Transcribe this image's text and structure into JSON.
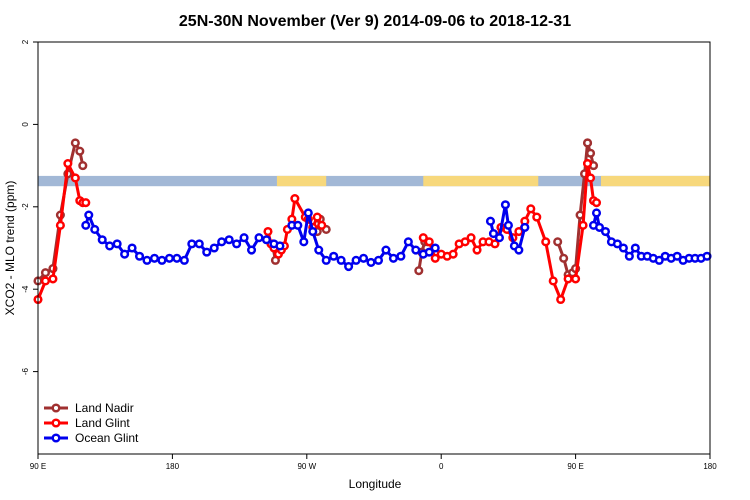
{
  "chart_data": {
    "type": "line",
    "title": "25N-30N November (Ver 9)   2014-09-06 to 2018-12-31",
    "xlabel": "Longitude",
    "ylabel": "XCO2 - MLO trend (ppm)",
    "xlim": [
      0,
      450
    ],
    "ylim": [
      -8,
      2
    ],
    "x_ticks": [
      {
        "value": 0,
        "label": "90 E"
      },
      {
        "value": 90,
        "label": "180"
      },
      {
        "value": 180,
        "label": "90 W"
      },
      {
        "value": 270,
        "label": "0"
      },
      {
        "value": 360,
        "label": "90 E"
      },
      {
        "value": 450,
        "label": "180"
      }
    ],
    "y_ticks": [
      {
        "value": 2,
        "label": "2"
      },
      {
        "value": 0,
        "label": "0"
      },
      {
        "value": -2,
        "label": "-2"
      },
      {
        "value": -4,
        "label": "-4"
      },
      {
        "value": -6,
        "label": "-6"
      }
    ],
    "legend_position": "bottom-left",
    "land_band": {
      "y_range": [
        -1.5,
        -1.25
      ],
      "ocean_color": "#a2b8d6",
      "land_color": "#f7d87c",
      "land_segments": [
        [
          160,
          193
        ],
        [
          258,
          335
        ],
        [
          377,
          450
        ]
      ]
    },
    "series": [
      {
        "name": "Land Nadir",
        "color": "#a03030",
        "x": [
          0,
          5,
          10,
          15,
          20,
          25,
          28,
          30
        ],
        "y": [
          -3.8,
          -3.6,
          -3.5,
          -2.2,
          -1.2,
          -0.45,
          -0.65,
          -1.0
        ],
        "segments": [
          {
            "x": [
              0,
              5,
              10,
              15,
              20,
              25,
              28,
              30
            ],
            "y": [
              -3.8,
              -3.6,
              -3.5,
              -2.2,
              -1.2,
              -0.45,
              -0.65,
              -1.0
            ]
          },
          {
            "x": [
              157,
              159,
              161,
              163
            ],
            "y": [
              -2.9,
              -3.3,
              -3.1,
              -3.0
            ]
          },
          {
            "x": [
              187,
              189,
              193
            ],
            "y": [
              -2.6,
              -2.3,
              -2.55
            ]
          },
          {
            "x": [
              255,
              257,
              259,
              261
            ],
            "y": [
              -3.55,
              -3.1,
              -2.85,
              -2.85
            ]
          },
          {
            "x": [
              348,
              352,
              355,
              358,
              360,
              363,
              366,
              368
            ],
            "y": [
              -2.85,
              -3.25,
              -3.65,
              -3.6,
              -3.5,
              -2.2,
              -1.2,
              -0.45
            ]
          },
          {
            "x": [
              368,
              370,
              372
            ],
            "y": [
              -0.45,
              -0.7,
              -1.0
            ]
          }
        ]
      },
      {
        "name": "Land Glint",
        "color": "#ff0000",
        "segments": [
          {
            "x": [
              0,
              5,
              10,
              15,
              20,
              25,
              28,
              30,
              32
            ],
            "y": [
              -4.25,
              -3.8,
              -3.75,
              -2.45,
              -0.95,
              -1.3,
              -1.85,
              -1.9,
              -1.9
            ]
          },
          {
            "x": [
              154,
              156,
              158,
              161,
              163,
              165,
              167,
              170,
              172,
              179,
              181
            ],
            "y": [
              -2.6,
              -2.9,
              -3.0,
              -3.15,
              -3.05,
              -2.95,
              -2.55,
              -2.3,
              -1.8,
              -2.25,
              -2.3
            ]
          },
          {
            "x": [
              181,
              184,
              187,
              190
            ],
            "y": [
              -2.3,
              -2.5,
              -2.25,
              -2.45
            ]
          },
          {
            "x": [
              258,
              262,
              266,
              270,
              274,
              278,
              282,
              286,
              290,
              294,
              298,
              302,
              306,
              310,
              314,
              318,
              322,
              326,
              330,
              334,
              340,
              345,
              350,
              355,
              360,
              365,
              368
            ],
            "y": [
              -2.75,
              -2.85,
              -3.25,
              -3.15,
              -3.2,
              -3.15,
              -2.9,
              -2.85,
              -2.75,
              -3.05,
              -2.85,
              -2.85,
              -2.9,
              -2.5,
              -2.55,
              -2.75,
              -2.6,
              -2.35,
              -2.05,
              -2.25,
              -2.85,
              -3.8,
              -4.25,
              -3.75,
              -3.75,
              -2.45,
              -0.95
            ]
          },
          {
            "x": [
              368,
              370,
              372,
              374
            ],
            "y": [
              -0.95,
              -1.3,
              -1.85,
              -1.9
            ]
          }
        ]
      },
      {
        "name": "Ocean Glint",
        "color": "#0000ee",
        "segments": [
          {
            "x": [
              32,
              34,
              38,
              43,
              48,
              53,
              58,
              63,
              68,
              73,
              78,
              83,
              88,
              93,
              98,
              103,
              108,
              113,
              118,
              123,
              128,
              133,
              138,
              143,
              148,
              153,
              158,
              162
            ],
            "y": [
              -2.45,
              -2.2,
              -2.55,
              -2.8,
              -2.95,
              -2.9,
              -3.15,
              -3.0,
              -3.2,
              -3.3,
              -3.25,
              -3.3,
              -3.25,
              -3.25,
              -3.3,
              -2.9,
              -2.9,
              -3.1,
              -3.0,
              -2.85,
              -2.8,
              -2.9,
              -2.75,
              -3.05,
              -2.75,
              -2.8,
              -2.9,
              -2.95
            ]
          },
          {
            "x": [
              170,
              174,
              178,
              181,
              184,
              188,
              193,
              198,
              203,
              208,
              213,
              218,
              223,
              228,
              233,
              238,
              243,
              248,
              253,
              258,
              262,
              266
            ],
            "y": [
              -2.45,
              -2.45,
              -2.85,
              -2.15,
              -2.6,
              -3.05,
              -3.3,
              -3.2,
              -3.3,
              -3.45,
              -3.3,
              -3.25,
              -3.35,
              -3.3,
              -3.05,
              -3.25,
              -3.2,
              -2.85,
              -3.05,
              -3.15,
              -3.1,
              -3.0
            ]
          },
          {
            "x": [
              303,
              305,
              309,
              313,
              315,
              319,
              322,
              326
            ],
            "y": [
              -2.35,
              -2.65,
              -2.75,
              -1.95,
              -2.45,
              -2.95,
              -3.05,
              -2.5
            ]
          },
          {
            "x": [
              372,
              374,
              376,
              380,
              384,
              388,
              392,
              396,
              400,
              404,
              408,
              412,
              416,
              420,
              424,
              428,
              432,
              436,
              440,
              444,
              448
            ],
            "y": [
              -2.45,
              -2.15,
              -2.5,
              -2.6,
              -2.85,
              -2.9,
              -3.0,
              -3.2,
              -3.0,
              -3.2,
              -3.2,
              -3.25,
              -3.3,
              -3.2,
              -3.25,
              -3.2,
              -3.3,
              -3.25,
              -3.25,
              -3.25,
              -3.2
            ]
          }
        ]
      }
    ]
  }
}
